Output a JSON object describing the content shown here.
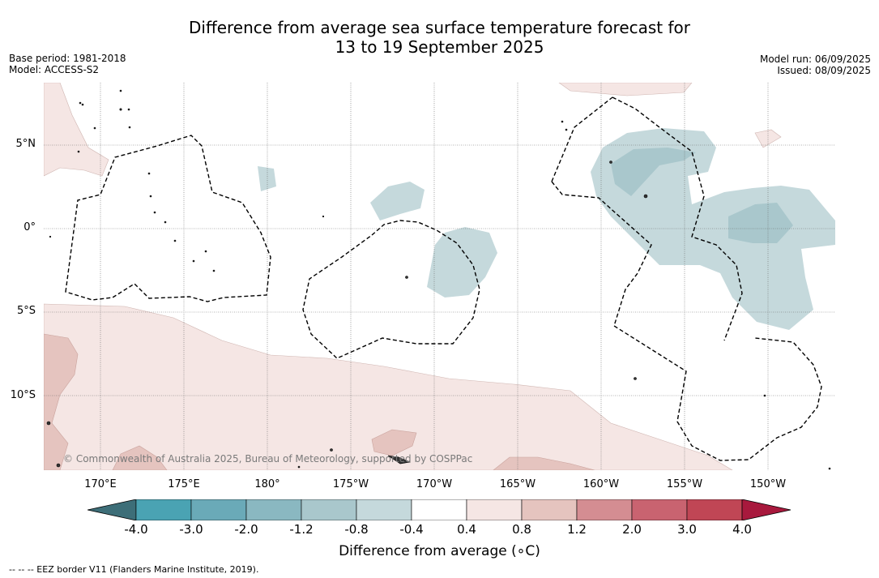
{
  "title": {
    "line1": "Difference from average sea surface temperature forecast for",
    "line2": "13 to 19 September 2025"
  },
  "meta_left": {
    "base_period": "Base period: 1981-2018",
    "model": "Model: ACCESS-S2"
  },
  "meta_right": {
    "model_run": "Model run: 06/09/2025",
    "issued": "Issued: 08/09/2025"
  },
  "lat_labels": [
    "5°N",
    "0°",
    "5°S",
    "10°S"
  ],
  "lon_labels": [
    "170°E",
    "175°E",
    "180°",
    "175°W",
    "170°W",
    "165°W",
    "160°W",
    "155°W",
    "150°W"
  ],
  "copyright": "© Commonwealth of Australia 2025, Bureau of Meteorology, supported by COSPPac",
  "colorbar": {
    "ticks": [
      "-4.0",
      "-3.0",
      "-2.0",
      "-1.2",
      "-0.8",
      "-0.4",
      "0.4",
      "0.8",
      "1.2",
      "2.0",
      "3.0",
      "4.0"
    ],
    "colors": [
      "#3d6e78",
      "#4aa3b3",
      "#6aaab8",
      "#8ab8c1",
      "#a9c7cc",
      "#c5d9dc",
      "#ffffff",
      "#f5e6e4",
      "#e5c4bf",
      "#d48d92",
      "#c96370",
      "#c04655",
      "#a8193d"
    ],
    "title": "Difference from average ( C)",
    "degree_symbol": "∘"
  },
  "eez_note": "-- -- -- EEZ border V11 (Flanders Marine Institute, 2019)."
}
